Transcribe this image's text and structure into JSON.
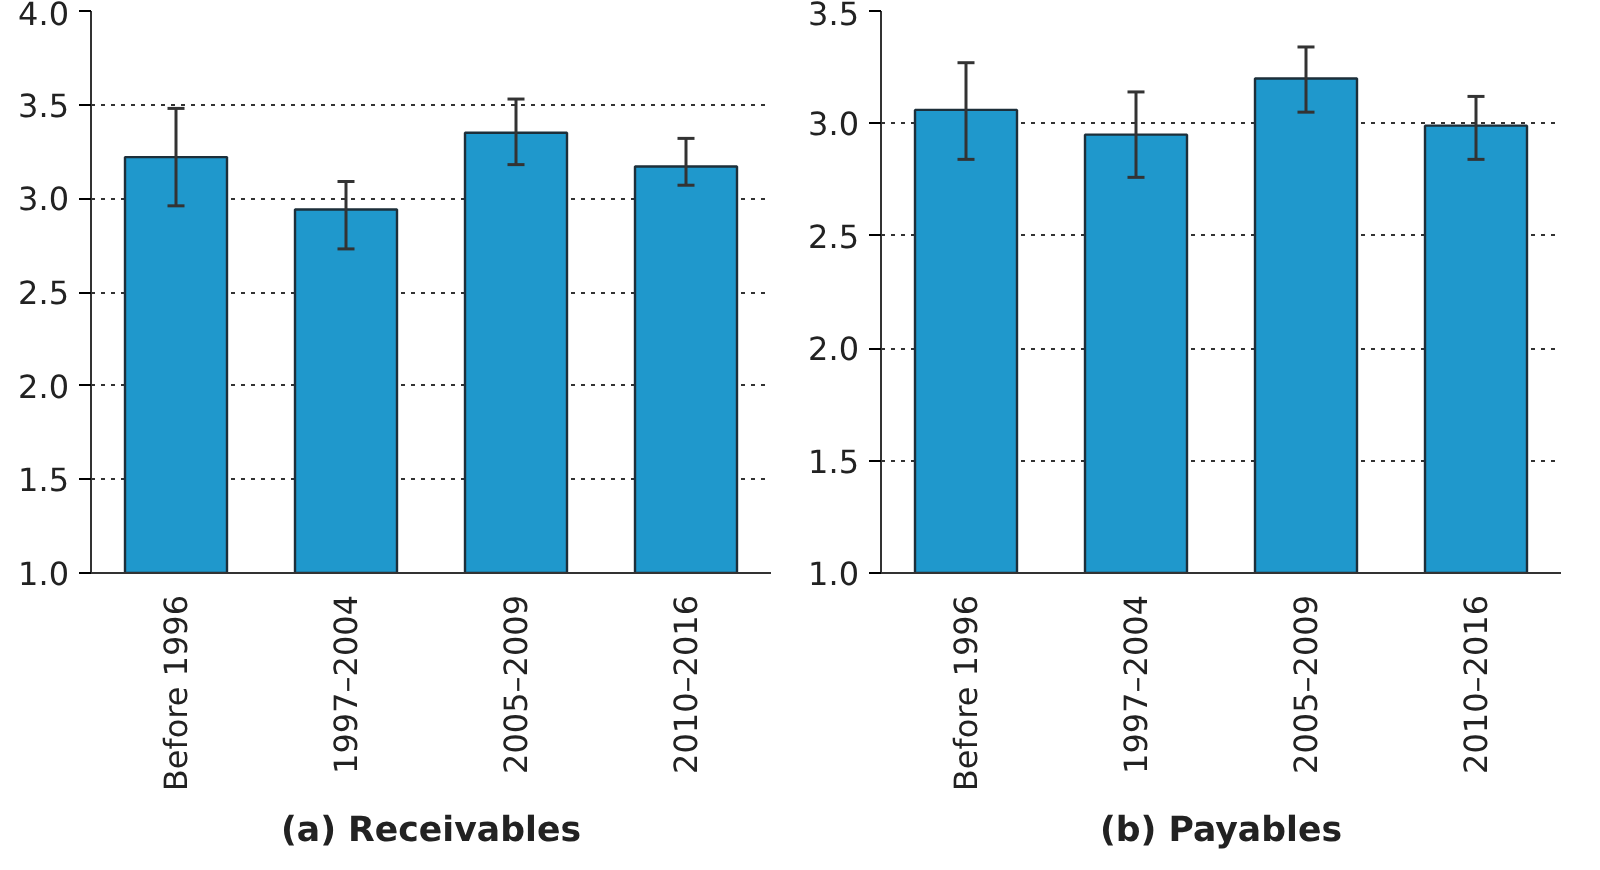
{
  "chart_data": [
    {
      "type": "bar",
      "title": "(a) Receivables",
      "categories": [
        "Before 1996",
        "1997–2004",
        "2005–2009",
        "2010–2016"
      ],
      "color": "#1f98cc",
      "values": [
        3.22,
        2.94,
        3.35,
        3.17
      ],
      "errors": [
        [
          2.96,
          3.48
        ],
        [
          2.73,
          3.09
        ],
        [
          3.18,
          3.53
        ],
        [
          3.07,
          3.32
        ]
      ],
      "ylim": [
        1.0,
        4.0
      ],
      "yticks": [
        {
          "value": 1.0,
          "label": "1.0"
        },
        {
          "value": 1.5,
          "label": "1.5"
        },
        {
          "value": 2.0,
          "label": "2.0"
        },
        {
          "value": 2.5,
          "label": "2.5"
        },
        {
          "value": 3.0,
          "label": "3.0"
        },
        {
          "value": 3.5,
          "label": "3.5"
        },
        {
          "value": 4.0,
          "label": "4.0"
        }
      ],
      "grid": "y"
    },
    {
      "type": "bar",
      "title": "(b) Payables",
      "categories": [
        "Before 1996",
        "1997–2004",
        "2005–2009",
        "2010–2016"
      ],
      "color": "#1f98cc",
      "values": [
        3.06,
        2.95,
        3.2,
        2.99
      ],
      "errors": [
        [
          2.84,
          3.27
        ],
        [
          2.76,
          3.14
        ],
        [
          3.05,
          3.34
        ],
        [
          2.84,
          3.12
        ]
      ],
      "ylim": [
        1.0,
        3.5
      ],
      "yticks": [
        {
          "value": 1.0,
          "label": "1.0"
        },
        {
          "value": 1.5,
          "label": "1.5"
        },
        {
          "value": 2.0,
          "label": "2.0"
        },
        {
          "value": 2.5,
          "label": "2.5"
        },
        {
          "value": 3.0,
          "label": "3.0"
        },
        {
          "value": 3.5,
          "label": "3.5"
        }
      ],
      "grid": "y"
    }
  ]
}
